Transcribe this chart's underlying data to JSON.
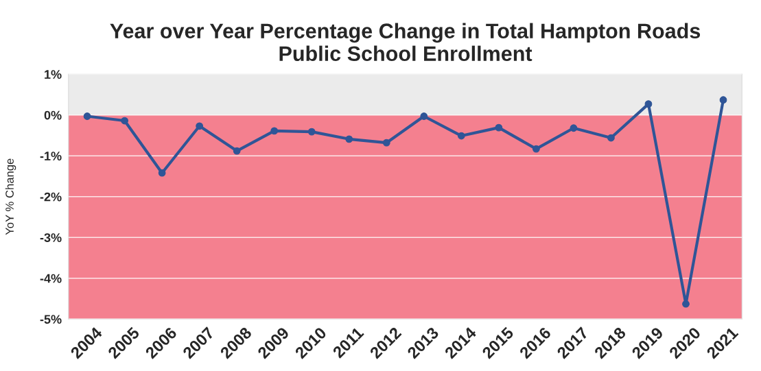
{
  "chart_data": {
    "type": "line",
    "title": "Year over Year Percentage Change in Total Hampton Roads\nPublic School Enrollment",
    "ylabel": "YoY % Change",
    "categories": [
      "2004",
      "2005",
      "2006",
      "2007",
      "2008",
      "2009",
      "2010",
      "2011",
      "2012",
      "2013",
      "2014",
      "2015",
      "2016",
      "2017",
      "2018",
      "2019",
      "2020",
      "2021"
    ],
    "series": [
      {
        "color": "#2f5597",
        "values": [
          -0.03,
          -0.14,
          -1.42,
          -0.27,
          -0.88,
          -0.39,
          -0.41,
          -0.59,
          -0.68,
          -0.03,
          -0.51,
          -0.31,
          -0.83,
          -0.32,
          -0.56,
          0.27,
          -4.63,
          0.37
        ]
      }
    ],
    "ylim": [
      -5,
      1
    ],
    "yticks": [
      {
        "value": -5,
        "label": "-5%"
      },
      {
        "value": -4,
        "label": "-4%"
      },
      {
        "value": -3,
        "label": "-3%"
      },
      {
        "value": -2,
        "label": "-2%"
      },
      {
        "value": -1,
        "label": "-1%"
      },
      {
        "value": 0,
        "label": "0%"
      },
      {
        "value": 1,
        "label": "1%"
      }
    ],
    "bands": [
      {
        "axis": "y",
        "from": 0,
        "to": 1,
        "color": "#ebebeb"
      },
      {
        "axis": "y",
        "from": -5,
        "to": 0,
        "color": "#f4808f"
      }
    ],
    "grid": "y",
    "marker": "circle",
    "line_style": "solid",
    "legend": false
  }
}
